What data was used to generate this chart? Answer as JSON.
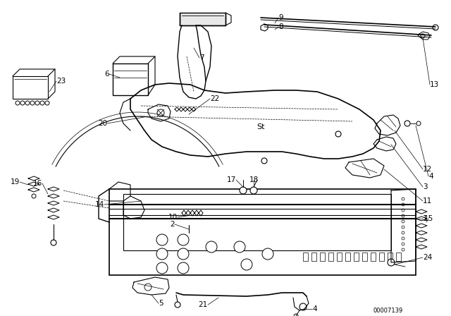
{
  "background_color": "#ffffff",
  "watermark": "00007139",
  "line_color": "#000000",
  "label_fontsize": 7.5,
  "fig_w": 6.4,
  "fig_h": 4.48,
  "dpi": 100
}
